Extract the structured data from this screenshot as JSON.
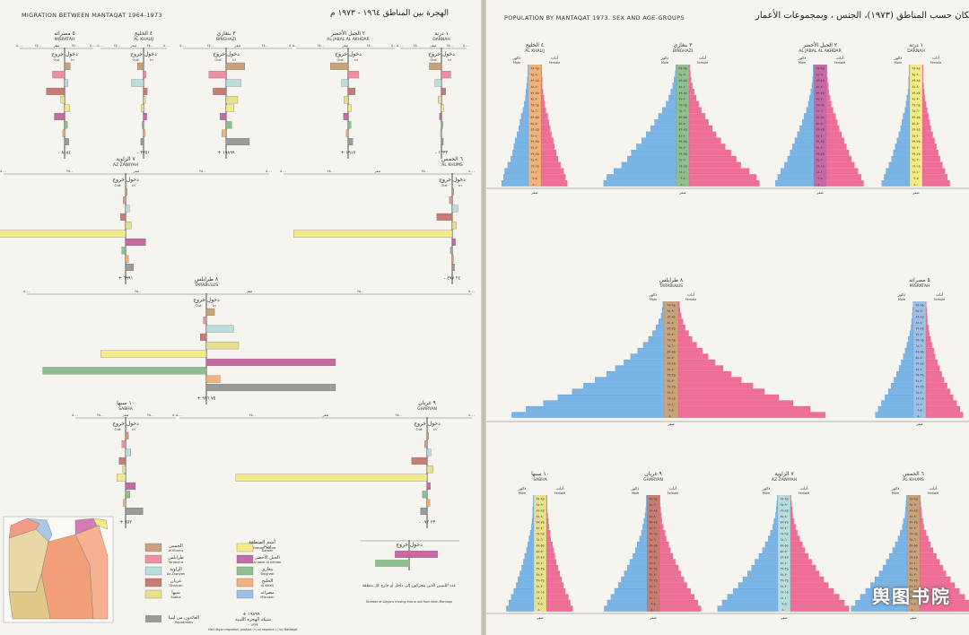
{
  "left": {
    "title_en": "MIGRATION BETWEEN MANTAQAT  1964-1973",
    "title_ar": "الهجرة بين المناطق ١٩٦٤ - ١٩٧٣ م",
    "legend": {
      "items": [
        {
          "ar": "الخمس",
          "en": "Al Khums",
          "color": "#c9a27a"
        },
        {
          "ar": "طرابلس",
          "en": "Tarabulus",
          "color": "#ee8fa2"
        },
        {
          "ar": "الزاوية",
          "en": "Az Zawiyah",
          "color": "#b9dcdc"
        },
        {
          "ar": "غريان",
          "en": "Gharyan",
          "color": "#c97d72"
        },
        {
          "ar": "سبها",
          "en": "Sabha",
          "color": "#e9e08c"
        },
        {
          "ar": "درنة",
          "en": "Darnah",
          "color": "#f5eb86"
        },
        {
          "ar": "الجبل الأخضر",
          "en": "Al Jabal Al Akhdar",
          "color": "#c56aa5"
        },
        {
          "ar": "بنغازي",
          "en": "Binghazi",
          "color": "#8fbf8c"
        },
        {
          "ar": "الخليج",
          "en": "Al Khalij",
          "color": "#f3b27a"
        },
        {
          "ar": "مصراته",
          "en": "Misratah",
          "color": "#9fc0e6"
        }
      ],
      "header_ar": "أسم المنطقة",
      "header_en": "Mantaqah name",
      "repatriates_ar": "العائدون من ليبيا",
      "repatriates_en": "Repatriates",
      "net_ar": "شبكة الهجرة الليبية",
      "net_en": "Net Libyan migration, positive (+) or negative (-) by Mantaqat",
      "net_example_pos": "+ ١٩٨٩٩",
      "net_example_neg": "- ١٣٣٣",
      "moving_ar": "عدد الليبيين الذين يتحركون إلى داخل أو خارج كل منطقة",
      "moving_en": "Number of Libyans moving into or out from each Mantaqa",
      "in_out_ar": "دخول خروج"
    },
    "panels": [
      {
        "ar": "٥ مصراته",
        "en": "MISRATAH",
        "net": "- ٨١٨٤",
        "in_label": "In",
        "out_label": "Out",
        "head_ar": "دخول خروج"
      },
      {
        "ar": "٤ الخليج",
        "en": "AL KHALIJ",
        "net": "- ٣٧٥١",
        "in_label": "In",
        "out_label": "Out",
        "head_ar": "دخول خروج"
      },
      {
        "ar": "٣ بنغازي",
        "en": "BINGHAZI",
        "net": "+ ١٩٨٩٩",
        "in_label": "In",
        "out_label": "Out",
        "head_ar": "دخول خروج"
      },
      {
        "ar": "٢ الجبل الأخضر",
        "en": "AL JABAL AL AKHDAR",
        "net": "+ ١٩١٧",
        "in_label": "In",
        "out_label": "Out",
        "head_ar": "دخول خروج"
      },
      {
        "ar": "١ درنة",
        "en": "DARNAH",
        "net": "- ١٣٣٣",
        "in_label": "In",
        "out_label": "Out",
        "head_ar": "دخول خروج"
      },
      {
        "ar": "٧ الزاوية",
        "en": "AZ ZAWIYAH",
        "net": "+ ٦٩٩١",
        "in_label": "In",
        "out_label": "Out",
        "head_ar": "دخول خروج"
      },
      {
        "ar": "٦ الخمس",
        "en": "AL KHUMS",
        "net": "- ٢٤ ٤٧٧",
        "in_label": "In",
        "out_label": "Out",
        "head_ar": "دخول خروج"
      },
      {
        "ar": "٨ طرابلس",
        "en": "TARABULUS",
        "net": "+ ٧٥ ٩٣٦",
        "in_label": "In",
        "out_label": "Out",
        "head_ar": "دخول خروج"
      },
      {
        "ar": "١٠ سبها",
        "en": "SABHA",
        "net": "+ ٦٥٢",
        "in_label": "In",
        "out_label": "Out",
        "head_ar": "دخول خروج"
      },
      {
        "ar": "٩ غريان",
        "en": "GHARYAN",
        "net": "- ٢٣ ٠٧٢",
        "in_label": "In",
        "out_label": "Out",
        "head_ar": "دخول خروج"
      }
    ],
    "axis_ticks": [
      "٥٠٠٠",
      "٢٥٠٠",
      "صفر",
      "٢٥٠٠",
      "٥٠٠٠",
      "٧٥٠٠",
      "١٠٠٠٠",
      "١٥٠٠٠",
      "٢٠٠٠٠",
      "٢٥٠٠٠",
      "٣٠٠٠٠"
    ]
  },
  "right": {
    "title_en": "POPULATION BY MANTAQAT 1973. SEX AND AGE-GROUPS",
    "title_ar": "السكان حسب المناطق (١٩٧٣)، الجنس ، وبمجموعات الأعمار",
    "male_ar": "ذكور",
    "male_en": "Male",
    "female_ar": "أناث",
    "female_en": "Female",
    "age_groups": [
      "٠-٤",
      "٥-٩",
      "١٠-١٤",
      "١٥-١٩",
      "٢٠-٢٤",
      "٢٥-٢٩",
      "٣٠-٣٤",
      "٣٥-٣٩",
      "٤٠-٤٤",
      "٤٥-٤٩",
      "٥٠-٥٤",
      "٥٥-٥٩",
      "٦٠-٦٤",
      "٦٥-٦٩",
      "٧٠-٧٤",
      "٧٥-٧٩",
      "٨٠-٨٤",
      "٨٥-٨٩",
      "٩٠-٩٤",
      "٩٥-٩٩"
    ],
    "zero_label": "صفر",
    "watermark": "舆图书院"
  },
  "colors": {
    "male": "#79b4e6",
    "female": "#ef6d97",
    "bg": "#f6f4ee",
    "grid": "#c9c6bd"
  },
  "chart_data": [
    {
      "type": "bar",
      "title": "MIGRATION BETWEEN MANTAQAT 1964-1973",
      "panels": [
        {
          "name": "MISRATAH",
          "values": [
            1200,
            -2600,
            700,
            -3900,
            -800,
            1100,
            -2200,
            600,
            -400,
            900
          ],
          "net": -8184
        },
        {
          "name": "AL KHALIJ",
          "values": [
            -1300,
            500,
            -2600,
            800,
            400,
            -500,
            700,
            -300,
            300,
            -600
          ],
          "net": -3751
        },
        {
          "name": "BINGHAZI",
          "values": [
            4000,
            -3700,
            3200,
            -2800,
            2500,
            1700,
            -1300,
            1200,
            -900,
            5000
          ],
          "net": 19899
        },
        {
          "name": "AL JABAL AL AKHDAR",
          "values": [
            -3800,
            2300,
            -1400,
            1500,
            -900,
            700,
            -1000,
            600,
            -400,
            1000
          ],
          "net": 1917
        },
        {
          "name": "DARNAH",
          "values": [
            -2600,
            2000,
            -1400,
            900,
            -700,
            500,
            -400,
            300,
            -200,
            400
          ],
          "net": -1333
        },
        {
          "name": "AZ ZAWIYAH",
          "values": [
            300,
            -500,
            800,
            -1100,
            1200,
            -28000,
            4300,
            -800,
            600,
            1700
          ],
          "net": 6991
        },
        {
          "name": "AL KHUMS",
          "values": [
            300,
            -600,
            1200,
            -3300,
            900,
            -34000,
            700,
            -400,
            300,
            500
          ],
          "net": -24477
        },
        {
          "name": "TARABULUS",
          "values": [
            1900,
            -700,
            6300,
            -1400,
            7500,
            -24500,
            30000,
            -38000,
            3200,
            30000
          ],
          "net": 75936
        },
        {
          "name": "SABHA",
          "values": [
            600,
            -800,
            1100,
            -1400,
            -600,
            -1900,
            2100,
            900,
            -500,
            3700
          ],
          "net": 652
        },
        {
          "name": "GHARYAN",
          "values": [
            300,
            -500,
            800,
            -3300,
            1300,
            -41000,
            700,
            -1000,
            600,
            -1400
          ],
          "net": -23072
        }
      ]
    },
    {
      "type": "bar",
      "title": "POPULATION BY MANTAQAT 1973. SEX AND AGE-GROUPS",
      "pyramids": [
        {
          "name": "AL KHALIJ",
          "male": [
            4400,
            4100,
            3900,
            3400,
            2900,
            2600,
            2400,
            2200,
            1900,
            1600,
            1400,
            1200,
            900,
            700,
            500,
            400,
            300,
            200,
            100,
            100
          ],
          "female": [
            4300,
            4000,
            3700,
            3200,
            2800,
            2500,
            2200,
            2000,
            1700,
            1500,
            1300,
            1100,
            800,
            600,
            500,
            300,
            200,
            200,
            100,
            100
          ]
        },
        {
          "name": "BINGHAZI",
          "male": [
            11300,
            10800,
            9700,
            8500,
            7600,
            7000,
            6200,
            5400,
            4700,
            4000,
            3400,
            2800,
            2200,
            1600,
            1200,
            900,
            600,
            400,
            200,
            100
          ],
          "female": [
            10900,
            10400,
            9300,
            8000,
            7300,
            6500,
            5600,
            4900,
            4200,
            3600,
            3000,
            2500,
            1900,
            1500,
            1100,
            800,
            500,
            300,
            200,
            100
          ]
        },
        {
          "name": "AL JABAL AL AKHDAR",
          "male": [
            6300,
            5900,
            5400,
            4800,
            4300,
            3900,
            3500,
            3100,
            2700,
            2300,
            1900,
            1600,
            1200,
            900,
            700,
            500,
            300,
            200,
            100,
            100
          ],
          "female": [
            6100,
            5700,
            5200,
            4600,
            4100,
            3700,
            3300,
            2900,
            2500,
            2100,
            1800,
            1500,
            1100,
            800,
            600,
            400,
            300,
            200,
            100,
            100
          ]
        },
        {
          "name": "DARNAH",
          "male": [
            4600,
            4200,
            3900,
            3400,
            3000,
            2700,
            2400,
            2100,
            1800,
            1500,
            1300,
            1100,
            800,
            600,
            500,
            300,
            200,
            200,
            100,
            100
          ],
          "female": [
            4500,
            4100,
            3700,
            3300,
            2900,
            2600,
            2300,
            2000,
            1700,
            1400,
            1200,
            1000,
            800,
            600,
            400,
            300,
            200,
            100,
            100,
            100
          ]
        },
        {
          "name": "TARABULUS",
          "male": [
            26500,
            24000,
            21000,
            18500,
            16000,
            14000,
            12000,
            10000,
            8500,
            7000,
            5800,
            4600,
            3600,
            2700,
            2000,
            1400,
            900,
            500,
            300,
            200
          ],
          "female": [
            25600,
            23000,
            20000,
            17500,
            15000,
            13000,
            11000,
            9200,
            7800,
            6400,
            5200,
            4200,
            3200,
            2400,
            1800,
            1200,
            800,
            500,
            300,
            200
          ]
        },
        {
          "name": "MISRATAH",
          "male": [
            10600,
            9800,
            8900,
            7900,
            7000,
            6200,
            5400,
            4700,
            4000,
            3400,
            2800,
            2300,
            1800,
            1400,
            1000,
            700,
            500,
            300,
            200,
            100
          ],
          "female": [
            10300,
            9500,
            8600,
            7600,
            6700,
            5900,
            5100,
            4400,
            3800,
            3200,
            2600,
            2200,
            1700,
            1300,
            900,
            700,
            400,
            300,
            200,
            100
          ]
        },
        {
          "name": "SABHA",
          "male": [
            4500,
            4100,
            3700,
            3300,
            2900,
            2600,
            2300,
            2000,
            1700,
            1500,
            1200,
            1000,
            800,
            600,
            400,
            300,
            200,
            200,
            100,
            100
          ],
          "female": [
            4300,
            3900,
            3600,
            3100,
            2800,
            2500,
            2200,
            1900,
            1600,
            1400,
            1200,
            1000,
            700,
            600,
            400,
            300,
            200,
            100,
            100,
            100
          ]
        },
        {
          "name": "GHARYAN",
          "male": [
            7000,
            6500,
            5900,
            5300,
            4700,
            4200,
            3700,
            3200,
            2800,
            2300,
            1900,
            1600,
            1200,
            900,
            700,
            500,
            300,
            200,
            100,
            100
          ],
          "female": [
            6800,
            6300,
            5700,
            5100,
            4500,
            4000,
            3500,
            3100,
            2600,
            2200,
            1800,
            1500,
            1100,
            900,
            600,
            400,
            300,
            200,
            100,
            100
          ]
        },
        {
          "name": "AZ ZAWIYAH",
          "male": [
            10500,
            9700,
            8800,
            7800,
            6900,
            6100,
            5300,
            4600,
            4000,
            3300,
            2700,
            2200,
            1700,
            1300,
            900,
            700,
            400,
            300,
            200,
            100
          ],
          "female": [
            10200,
            9400,
            8500,
            7500,
            6600,
            5800,
            5000,
            4400,
            3700,
            3100,
            2500,
            2100,
            1600,
            1200,
            900,
            600,
            400,
            300,
            200,
            100
          ]
        },
        {
          "name": "AL KHUMS",
          "male": [
            10400,
            9600,
            8700,
            7700,
            6800,
            6000,
            5200,
            4500,
            3900,
            3300,
            2700,
            2200,
            1700,
            1300,
            900,
            700,
            400,
            300,
            200,
            100
          ],
          "female": [
            10100,
            9300,
            8400,
            7400,
            6500,
            5700,
            4900,
            4300,
            3700,
            3100,
            2500,
            2000,
            1600,
            1200,
            800,
            600,
            400,
            300,
            200,
            100
          ]
        }
      ]
    }
  ]
}
